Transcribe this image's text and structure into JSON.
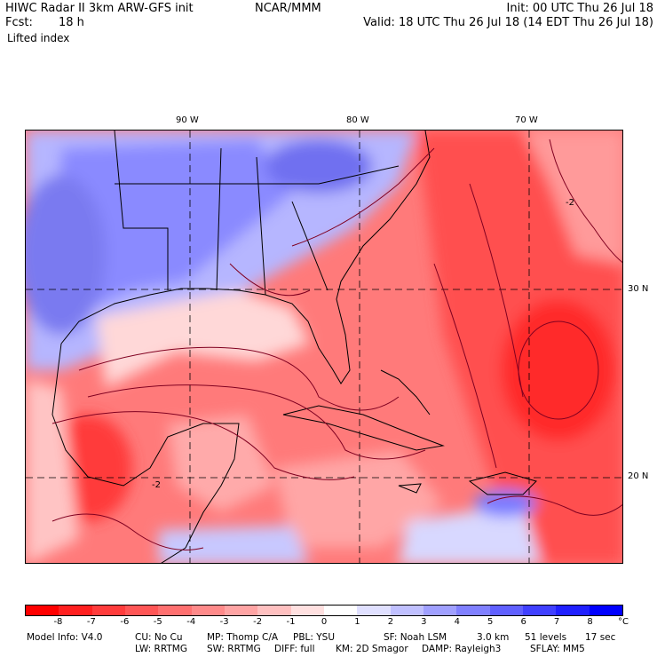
{
  "header": {
    "model": "HIWC Radar II 3km ARW-GFS init",
    "org": "NCAR/MMM",
    "init": "Init: 00 UTC Thu 26 Jul 18",
    "fcst_label": "Fcst:",
    "fcst_value": "18 h",
    "valid": "Valid: 18 UTC Thu 26 Jul 18 (14 EDT Thu 26 Jul 18)",
    "field": "Lifted index"
  },
  "map": {
    "lon_labels": [
      "90 W",
      "80 W",
      "70 W"
    ],
    "lat_labels": [
      "30 N",
      "20 N"
    ],
    "contour_labels": [
      "-2",
      "-2"
    ],
    "field_colors": {
      "strong_negative": "#ff1a1a",
      "negative": "#ff6e6e",
      "weak_negative": "#ffb8b8",
      "near_zero": "#fff0f0",
      "weak_positive": "#c8c8ff",
      "positive": "#8080ff",
      "strong_positive": "#4848f0"
    },
    "contour_color": "#800020"
  },
  "colorbar": {
    "ticks": [
      "-8",
      "-7",
      "-6",
      "-5",
      "-4",
      "-3",
      "-2",
      "-1",
      "0",
      "1",
      "2",
      "3",
      "4",
      "5",
      "6",
      "7",
      "8"
    ],
    "unit": "°C",
    "colors": [
      "#ff0000",
      "#ff2020",
      "#ff3c3c",
      "#ff5656",
      "#ff7070",
      "#ff8a8a",
      "#ffa4a4",
      "#ffc0c0",
      "#ffe0e0",
      "#ffffff",
      "#e0e0ff",
      "#c0c0ff",
      "#a0a0ff",
      "#8080ff",
      "#6060ff",
      "#4040ff",
      "#2020ff",
      "#0000ff"
    ]
  },
  "model_info": {
    "line1": [
      "Model Info: V4.0",
      "CU: No Cu",
      "MP: Thomp C/A",
      "PBL: YSU",
      "SF: Noah LSM",
      "3.0 km",
      "51 levels",
      "17 sec"
    ],
    "line2": [
      "LW: RRTMG",
      "SW: RRTMG",
      "DIFF: full",
      "KM: 2D Smagor",
      "DAMP: Rayleigh3",
      "SFLAY: MM5"
    ]
  }
}
